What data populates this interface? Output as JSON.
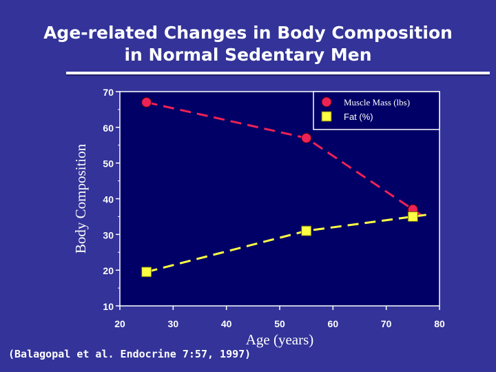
{
  "slide": {
    "title_line1": "Age-related Changes in Body Composition",
    "title_line2": "in Normal Sedentary Men",
    "citation": "(Balagopal et al. Endocrine 7:57, 1997)"
  },
  "chart_data": {
    "type": "line",
    "title": "",
    "xlabel": "Age (years)",
    "ylabel": "Body Composition",
    "xlim": [
      20,
      80
    ],
    "ylim": [
      10,
      70
    ],
    "xticks": [
      20,
      30,
      40,
      50,
      60,
      70,
      80
    ],
    "yticks": [
      10,
      20,
      30,
      40,
      50,
      60,
      70
    ],
    "grid": false,
    "legend_position": "top-right",
    "series": [
      {
        "name": "Muscle Mass (lbs)",
        "marker": "circle",
        "color": "#ee2255",
        "line_color": "#ee2255",
        "x": [
          25,
          55,
          75
        ],
        "y": [
          67,
          57,
          37
        ]
      },
      {
        "name": "Fat (%)",
        "marker": "square",
        "color": "#ffff44",
        "line_color": "#ffff44",
        "x": [
          25,
          55,
          75
        ],
        "y": [
          19.5,
          31,
          35
        ]
      }
    ],
    "colors": {
      "background": "#333399",
      "plot_background": "#000066",
      "axis": "#ffffff",
      "text": "#ffffff"
    }
  }
}
